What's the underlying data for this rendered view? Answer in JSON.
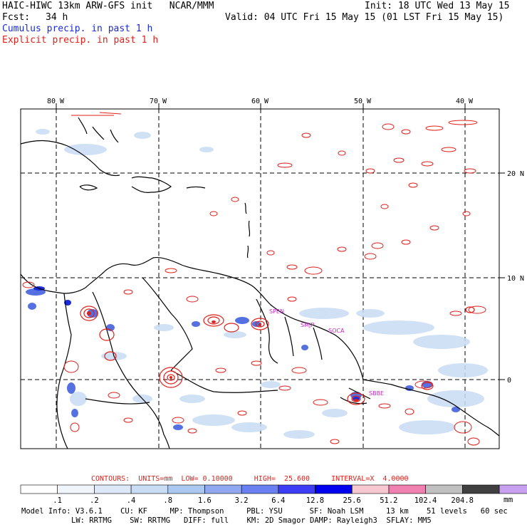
{
  "header": {
    "title_left": "HAIC-HIWC 13km ARW-GFS init   NCAR/MMM",
    "init": "Init: 18 UTC Wed 13 May 15",
    "fcst_label": "Fcst:",
    "fcst_value": "34 h",
    "valid": "Valid: 04 UTC Fri 15 May 15 (01 LST Fri 15 May 15)",
    "legend_cumulus": "Cumulus precip. in past 1 h",
    "legend_explicit": "Explicit precip. in past 1 h"
  },
  "map": {
    "lon_labels": [
      "80 W",
      "70 W",
      "60 W",
      "50 W",
      "40 W"
    ],
    "lat_labels": [
      "20 N",
      "10 N",
      "0"
    ],
    "station_labels": [
      "SPEN",
      "SMJP",
      "SOCA",
      "SBBE"
    ],
    "colors": {
      "coast": "#000000",
      "explicit": "#e0201a",
      "cumulus_light": "#bcd4f0",
      "cumulus_mid": "#5570e0",
      "cumulus_dark": "#1a2bd8",
      "station": "#cc22cc"
    }
  },
  "contours": {
    "units": "CONTOURS:  UNITS=mm  LOW= 0.10000     HIGH=  25.600     INTERVAL=X  4.0000"
  },
  "colorbar": {
    "labels": [
      ".1",
      ".2",
      ".4",
      ".8",
      "1.6",
      "3.2",
      "6.4",
      "12.8",
      "25.6",
      "51.2",
      "102.4",
      "204.8"
    ],
    "unit": "mm",
    "colors": [
      "#ffffff",
      "#f0f4fb",
      "#dde8f8",
      "#c8dcf4",
      "#aac8f0",
      "#8fa8f0",
      "#6a7ff0",
      "#3d3df5",
      "#0000f0",
      "#f7c8d0",
      "#f080b0",
      "#c0c0c0",
      "#404040",
      "#c8a0f0"
    ]
  },
  "model_info": {
    "line1": "Model Info: V3.6.1    CU: KF     MP: Thompson     PBL: YSU      SF: Noah LSM     13 km    51 levels   60 sec",
    "line2": "LW: RRTMG    SW: RRTMG   DIFF: full    KM: 2D Smagor DAMP: Rayleigh3  SFLAY: MM5"
  }
}
